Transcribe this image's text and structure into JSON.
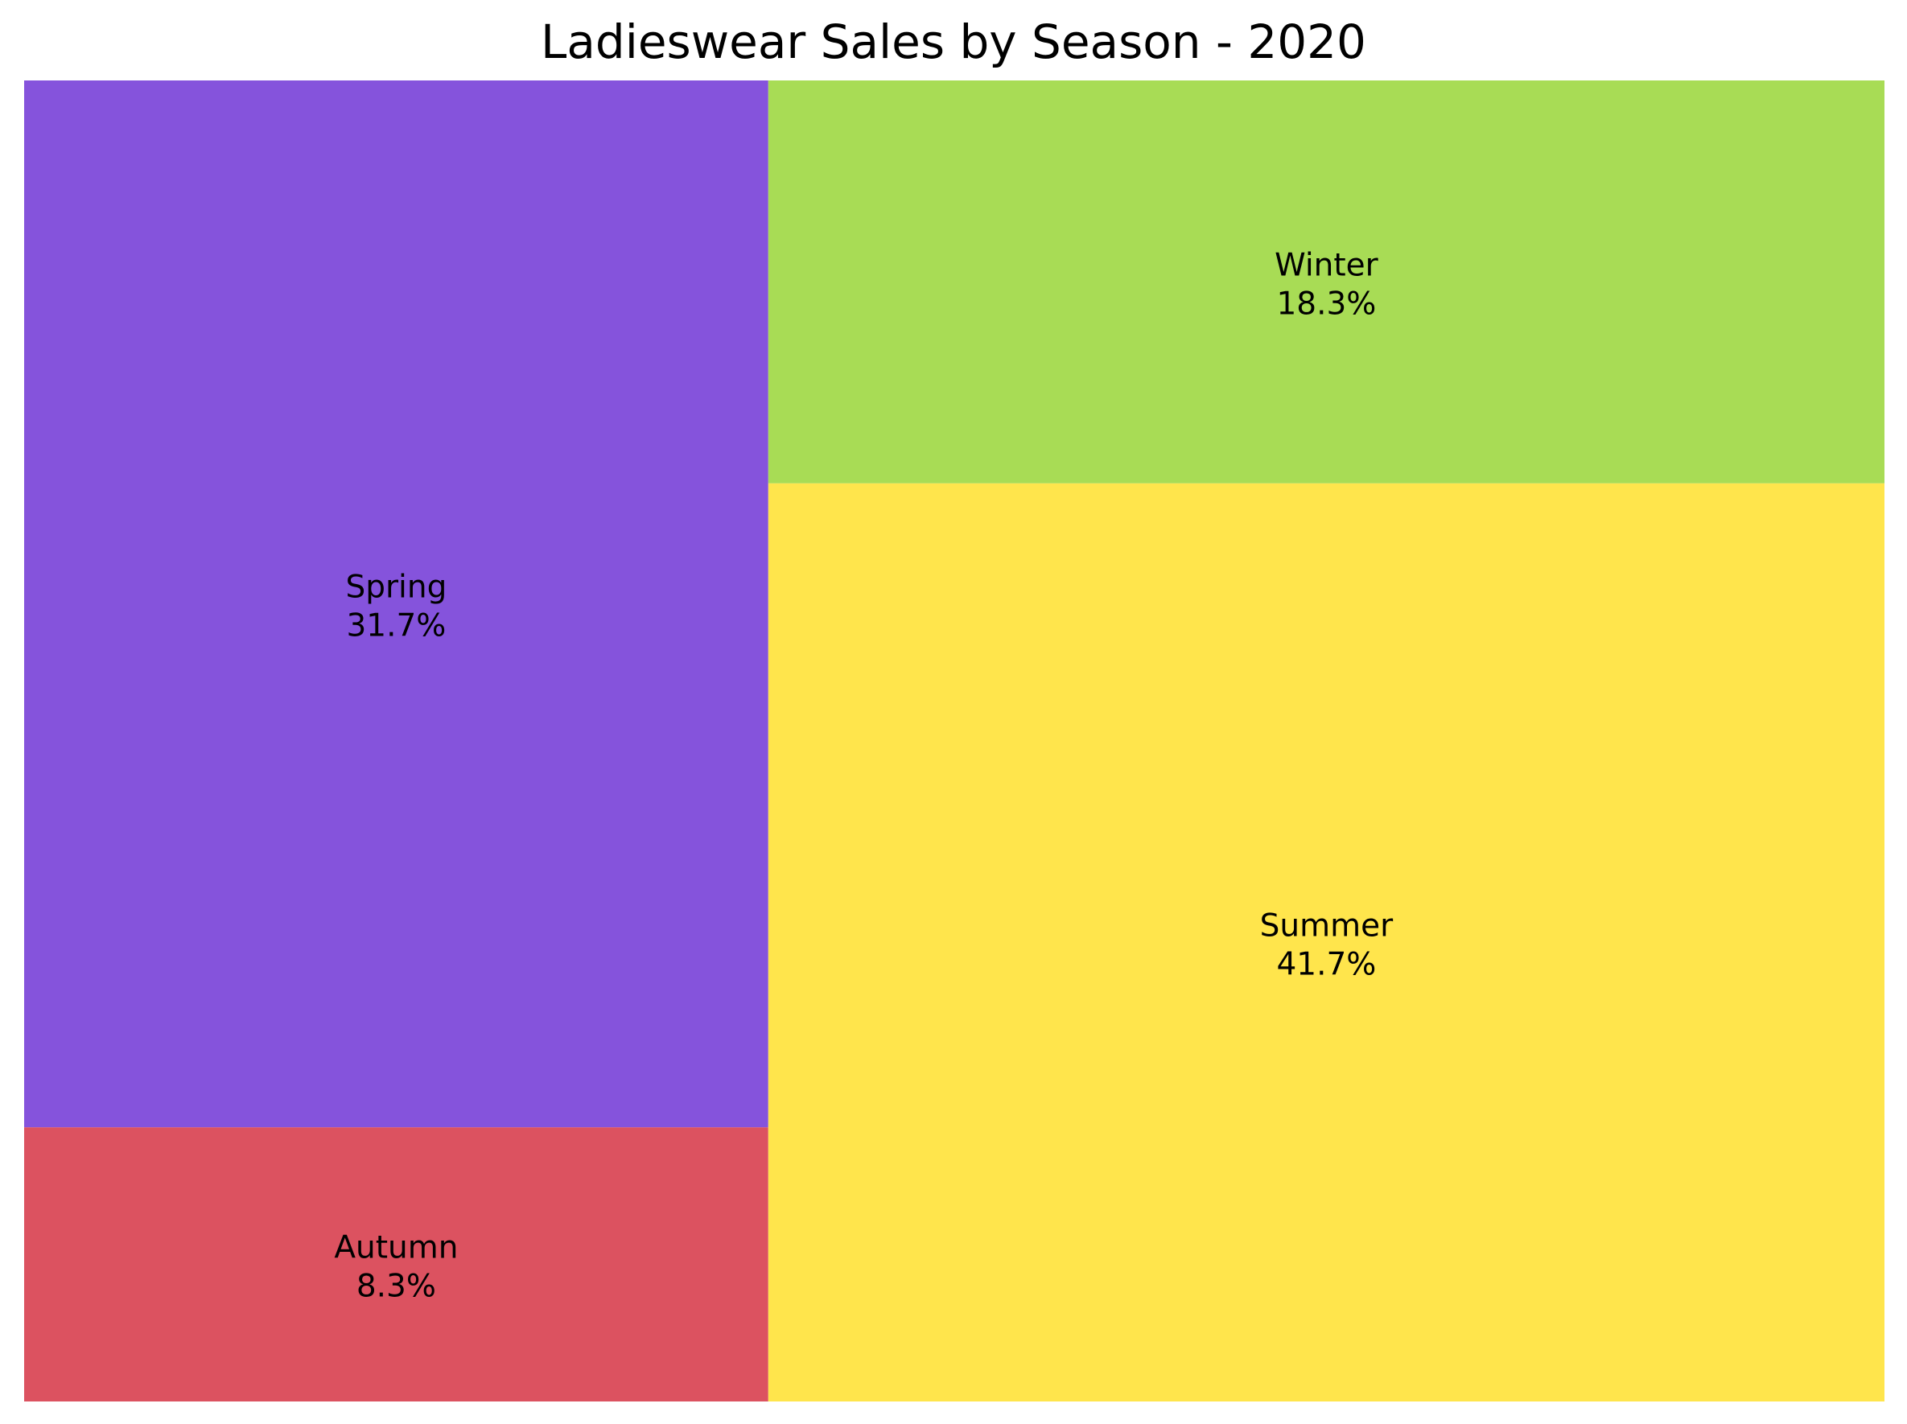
{
  "chart_data": {
    "type": "treemap",
    "title": "Ladieswear Sales by Season - 2020",
    "unit": "%",
    "items": [
      {
        "label": "Spring",
        "value": 31.7,
        "display": "31.7%",
        "color": "#8553dc"
      },
      {
        "label": "Autumn",
        "value": 8.3,
        "display": "8.3%",
        "color": "#dc5260"
      },
      {
        "label": "Winter",
        "value": 18.3,
        "display": "18.3%",
        "color": "#a8dc55"
      },
      {
        "label": "Summer",
        "value": 41.7,
        "display": "41.7%",
        "color": "#ffe54c"
      }
    ]
  }
}
